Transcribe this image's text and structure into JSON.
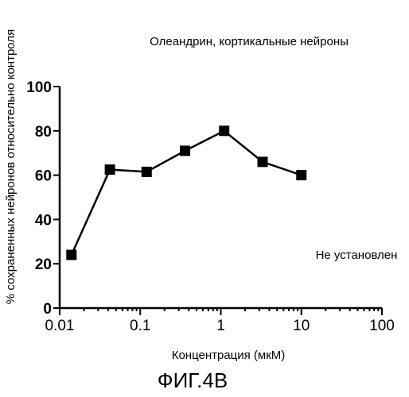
{
  "chart_data": {
    "type": "line",
    "title": "Олеандрин, кортикальные нейроны",
    "xlabel": "Концентрация (мкМ)",
    "ylabel": "% сохраненных нейронов относительно контроля",
    "xscale": "log",
    "xlim": [
      0.01,
      100
    ],
    "ylim": [
      0,
      100
    ],
    "x_ticks": [
      0.01,
      0.1,
      1,
      10,
      100
    ],
    "x_tick_labels": [
      "0.01",
      "0.1",
      "1",
      "10",
      "100"
    ],
    "y_ticks": [
      0,
      20,
      40,
      60,
      80,
      100
    ],
    "y_tick_labels": [
      "0",
      "20",
      "40",
      "60",
      "80",
      "100"
    ],
    "x": [
      0.014,
      0.042,
      0.12,
      0.36,
      1.1,
      3.3,
      10
    ],
    "series": [
      {
        "values": [
          24,
          62.5,
          61.5,
          71,
          80,
          66,
          60
        ],
        "marker": "square"
      }
    ],
    "annotation": "Не установлен",
    "grid": false,
    "caption": "ФИГ.4В"
  }
}
